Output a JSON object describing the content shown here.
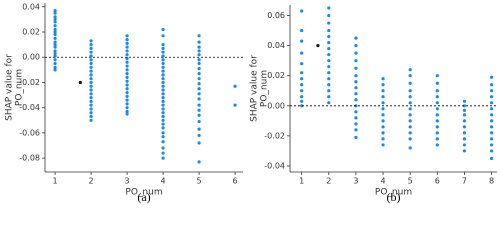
{
  "chart_data": [
    {
      "type": "scatter",
      "caption": "(a)",
      "xlabel": "PO_num",
      "ylabel": [
        "SHAP value for",
        "PO_num"
      ],
      "xlim": [
        0.72,
        6.22
      ],
      "xticks": [
        1,
        2,
        3,
        4,
        5,
        6
      ],
      "ylim": [
        -0.091,
        0.043
      ],
      "yticks": [
        0.04,
        0.02,
        {
          "value": 0,
          "label": "0.00"
        },
        -0.02,
        -0.04,
        -0.06,
        -0.08
      ],
      "hline": 0,
      "series": [
        {
          "color": "#1e88e5",
          "x": [
            1,
            1,
            1,
            1,
            1,
            1,
            1,
            1,
            1,
            1,
            1,
            1,
            1,
            1,
            1,
            1,
            1,
            1,
            1,
            1,
            2,
            2,
            2,
            2,
            2,
            2,
            2,
            2,
            2,
            2,
            2,
            2,
            2,
            2,
            2,
            2,
            2,
            2,
            2,
            2,
            2,
            2,
            3,
            3,
            3,
            3,
            3,
            3,
            3,
            3,
            3,
            3,
            3,
            3,
            3,
            3,
            3,
            3,
            3,
            3,
            3,
            3,
            3,
            3,
            4,
            4,
            4,
            4,
            4,
            4,
            4,
            4,
            4,
            4,
            4,
            4,
            4,
            4,
            4,
            4,
            4,
            4,
            4,
            4,
            4,
            4,
            4,
            4,
            4,
            4,
            4,
            4,
            4,
            4,
            4,
            5,
            5,
            5,
            5,
            5,
            5,
            5,
            5,
            5,
            5,
            5,
            5,
            5,
            5,
            5,
            5,
            5,
            5,
            5,
            5,
            5,
            5,
            6,
            6
          ],
          "values": [
            0.037,
            0.035,
            0.032,
            0.03,
            0.028,
            0.025,
            0.022,
            0.02,
            0.018,
            0.015,
            0.012,
            0.01,
            0.008,
            0.005,
            0.003,
            0.001,
            -0.002,
            -0.005,
            -0.008,
            -0.01,
            0.013,
            0.01,
            0.007,
            0.004,
            0.001,
            -0.002,
            -0.005,
            -0.008,
            -0.011,
            -0.014,
            -0.017,
            -0.02,
            -0.023,
            -0.026,
            -0.029,
            -0.032,
            -0.035,
            -0.038,
            -0.041,
            -0.044,
            -0.047,
            -0.05,
            0.017,
            0.014,
            0.011,
            0.008,
            0.005,
            0.002,
            -0.001,
            -0.004,
            -0.007,
            -0.01,
            -0.013,
            -0.016,
            -0.019,
            -0.022,
            -0.025,
            -0.028,
            -0.031,
            -0.034,
            -0.037,
            -0.04,
            -0.043,
            -0.045,
            0.022,
            0.017,
            0.01,
            0.007,
            0.004,
            0.001,
            -0.002,
            -0.005,
            -0.008,
            -0.011,
            -0.014,
            -0.017,
            -0.02,
            -0.023,
            -0.026,
            -0.029,
            -0.032,
            -0.035,
            -0.038,
            -0.041,
            -0.044,
            -0.047,
            -0.05,
            -0.053,
            -0.056,
            -0.06,
            -0.063,
            -0.067,
            -0.072,
            -0.076,
            -0.08,
            0.017,
            0.012,
            0.008,
            0.005,
            0.002,
            -0.002,
            -0.005,
            -0.009,
            -0.013,
            -0.017,
            -0.021,
            -0.025,
            -0.029,
            -0.033,
            -0.038,
            -0.042,
            -0.046,
            -0.051,
            -0.057,
            -0.062,
            -0.068,
            -0.083,
            -0.023,
            -0.038
          ]
        },
        {
          "color": "#111111",
          "x": [
            1.7
          ],
          "values": [
            -0.02
          ]
        }
      ]
    },
    {
      "type": "scatter",
      "caption": "(b)",
      "xlabel": "PO_num",
      "ylabel": [
        "SHAP value for",
        "PO_num"
      ],
      "xlim": [
        0.57,
        8.2
      ],
      "xticks": [
        1,
        2,
        3,
        4,
        5,
        6,
        7,
        8
      ],
      "ylim": [
        -0.044,
        0.067
      ],
      "yticks": [
        0.06,
        0.04,
        0.02,
        {
          "value": 0,
          "label": "0.00"
        },
        -0.02,
        -0.04
      ],
      "hline": 0,
      "series": [
        {
          "color": "#1e88e5",
          "x": [
            1,
            1,
            1,
            1,
            1,
            1,
            1,
            1,
            1,
            1,
            1,
            1,
            2,
            2,
            2,
            2,
            2,
            2,
            2,
            2,
            2,
            2,
            2,
            2,
            2,
            2,
            2,
            2,
            3,
            3,
            3,
            3,
            3,
            3,
            3,
            3,
            3,
            3,
            3,
            3,
            3,
            3,
            3,
            3,
            4,
            4,
            4,
            4,
            4,
            4,
            4,
            4,
            4,
            4,
            4,
            4,
            5,
            5,
            5,
            5,
            5,
            5,
            5,
            5,
            5,
            5,
            5,
            5,
            5,
            6,
            6,
            6,
            6,
            6,
            6,
            6,
            6,
            6,
            6,
            6,
            6,
            7,
            7,
            7,
            7,
            7,
            7,
            7,
            7,
            7,
            7,
            8,
            8,
            8,
            8,
            8,
            8,
            8,
            8,
            8,
            8,
            8,
            8,
            8,
            8
          ],
          "values": [
            0.063,
            0.05,
            0.043,
            0.035,
            0.028,
            0.022,
            0.018,
            0.014,
            0.01,
            0.006,
            0.003,
            0.0,
            0.065,
            0.06,
            0.055,
            0.05,
            0.046,
            0.042,
            0.038,
            0.034,
            0.03,
            0.026,
            0.022,
            0.018,
            0.014,
            0.01,
            0.006,
            0.002,
            0.045,
            0.04,
            0.035,
            0.03,
            0.025,
            0.02,
            0.016,
            0.012,
            0.008,
            0.004,
            0.0,
            -0.004,
            -0.008,
            -0.012,
            -0.016,
            -0.021,
            0.018,
            0.014,
            0.01,
            0.006,
            0.002,
            -0.002,
            -0.006,
            -0.01,
            -0.014,
            -0.018,
            -0.022,
            -0.026,
            0.024,
            0.02,
            0.015,
            0.01,
            0.006,
            0.002,
            -0.002,
            -0.006,
            -0.01,
            -0.014,
            -0.018,
            -0.022,
            -0.028,
            0.02,
            0.015,
            0.01,
            0.006,
            0.002,
            -0.002,
            -0.006,
            -0.01,
            -0.014,
            -0.018,
            -0.022,
            -0.026,
            0.003,
            0.0,
            -0.003,
            -0.006,
            -0.01,
            -0.014,
            -0.018,
            -0.022,
            -0.026,
            -0.03,
            0.019,
            0.014,
            0.01,
            0.006,
            0.002,
            -0.002,
            -0.006,
            -0.01,
            -0.014,
            -0.018,
            -0.022,
            -0.026,
            -0.03,
            -0.035
          ]
        },
        {
          "color": "#111111",
          "x": [
            1.6
          ],
          "values": [
            0.04
          ]
        }
      ]
    }
  ]
}
